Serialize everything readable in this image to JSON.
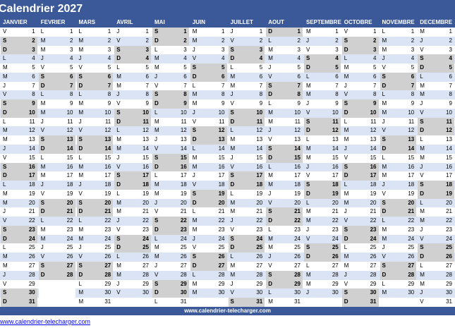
{
  "title": "Calendrier 2027",
  "months": [
    "JANVIER",
    "FEVRIER",
    "MARS",
    "AVRIL",
    "MAI",
    "JUIN",
    "JUILLET",
    "AOUT",
    "SEPTEMBRE",
    "OCTOBRE",
    "NOVEMBRE",
    "DECEMBRE"
  ],
  "year": 2027,
  "day_letters": [
    "D",
    "L",
    "M",
    "M",
    "J",
    "V",
    "S"
  ],
  "colors": {
    "header": "#3b5998",
    "weekend": "#d0d0d0",
    "alt_row": "#dbe4f4",
    "row": "#ffffff"
  },
  "footer": "www.calendrier-telecharger.com",
  "link": "www.calendrier-telecharger.com"
}
